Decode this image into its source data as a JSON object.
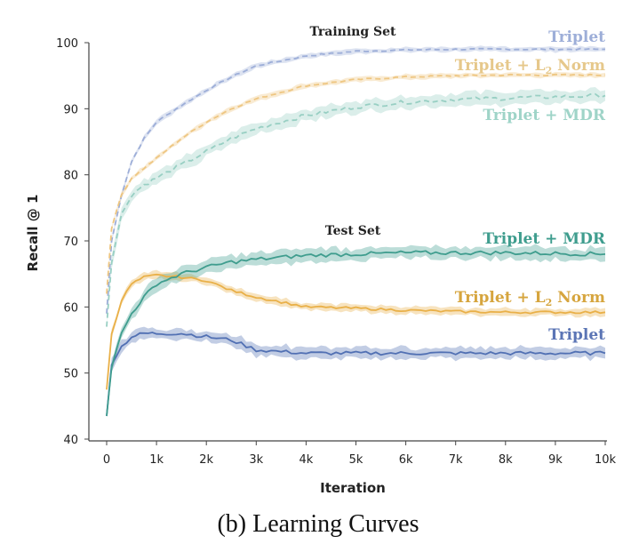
{
  "caption": "(b) Learning Curves",
  "chart_data": {
    "type": "line",
    "xlabel": "Iteration",
    "ylabel": "Recall @ 1",
    "xlim": [
      0,
      10000
    ],
    "ylim": [
      40,
      100
    ],
    "xticks": [
      0,
      1000,
      2000,
      3000,
      4000,
      5000,
      6000,
      7000,
      8000,
      9000,
      10000
    ],
    "xtick_labels": [
      "0",
      "1k",
      "2k",
      "3k",
      "4k",
      "5k",
      "6k",
      "7k",
      "8k",
      "9k",
      "10k"
    ],
    "yticks": [
      40,
      50,
      60,
      70,
      80,
      90,
      100
    ],
    "ytick_labels": [
      "40",
      "50",
      "60",
      "70",
      "80",
      "90",
      "100"
    ],
    "grid": false,
    "legend": "inline labels at right end of each curve",
    "panels": [
      {
        "title": "Training Set",
        "line_style": "dashed"
      },
      {
        "title": "Test Set",
        "line_style": "solid"
      }
    ],
    "x": [
      0,
      100,
      300,
      500,
      750,
      1000,
      1500,
      2000,
      2500,
      3000,
      4000,
      5000,
      6000,
      7000,
      8000,
      9000,
      10000
    ],
    "series": [
      {
        "name": "Triplet",
        "set": "Training Set",
        "color": "#9daed8",
        "label_color": "#9daed8",
        "values": [
          59,
          70,
          77,
          82,
          85.5,
          88,
          90.5,
          92.8,
          94.8,
          96.5,
          98,
          98.7,
          98.9,
          99,
          99,
          99,
          99
        ],
        "band": 0.4
      },
      {
        "name": "Triplet + L2 Norm",
        "set": "Training Set",
        "color": "#eec681",
        "label_color": "#e6c88b",
        "values": [
          62,
          72,
          77,
          79.5,
          81,
          82.5,
          85.5,
          88,
          90,
          91.5,
          93.5,
          94.4,
          94.8,
          95,
          95.1,
          95.1,
          95.1
        ],
        "band": 0.4
      },
      {
        "name": "Triplet + MDR",
        "set": "Training Set",
        "color": "#98cfc3",
        "label_color": "#9fd4c8",
        "values": [
          57,
          67,
          74,
          77,
          78.5,
          79.5,
          81.5,
          83.5,
          85.5,
          87,
          89,
          90.3,
          91,
          91.4,
          91.6,
          91.8,
          92
        ],
        "band": 1.0
      },
      {
        "name": "Triplet",
        "set": "Test Set",
        "color": "#5170b3",
        "label_color": "#5b75b5",
        "values": [
          43.5,
          51.5,
          54,
          55.5,
          56,
          56,
          56,
          55.5,
          55,
          53.5,
          53,
          53,
          53,
          53,
          53,
          53,
          53
        ],
        "band": 0.9
      },
      {
        "name": "Triplet + L2 Norm",
        "set": "Test Set",
        "color": "#e9b048",
        "label_color": "#d6a53e",
        "values": [
          47.5,
          56,
          61,
          63.5,
          64.5,
          64.8,
          64.5,
          64,
          62.5,
          61.5,
          60,
          59.8,
          59.5,
          59.3,
          59.2,
          59.2,
          59.2
        ],
        "band": 0.6
      },
      {
        "name": "Triplet + MDR",
        "set": "Test Set",
        "color": "#3f9d8e",
        "label_color": "#3f9d8e",
        "values": [
          43.5,
          51,
          56,
          59,
          61.5,
          63.5,
          65,
          66,
          66.8,
          67.2,
          67.8,
          68,
          68.2,
          68.2,
          68.2,
          68.1,
          68
        ],
        "band": 1.0
      }
    ]
  }
}
